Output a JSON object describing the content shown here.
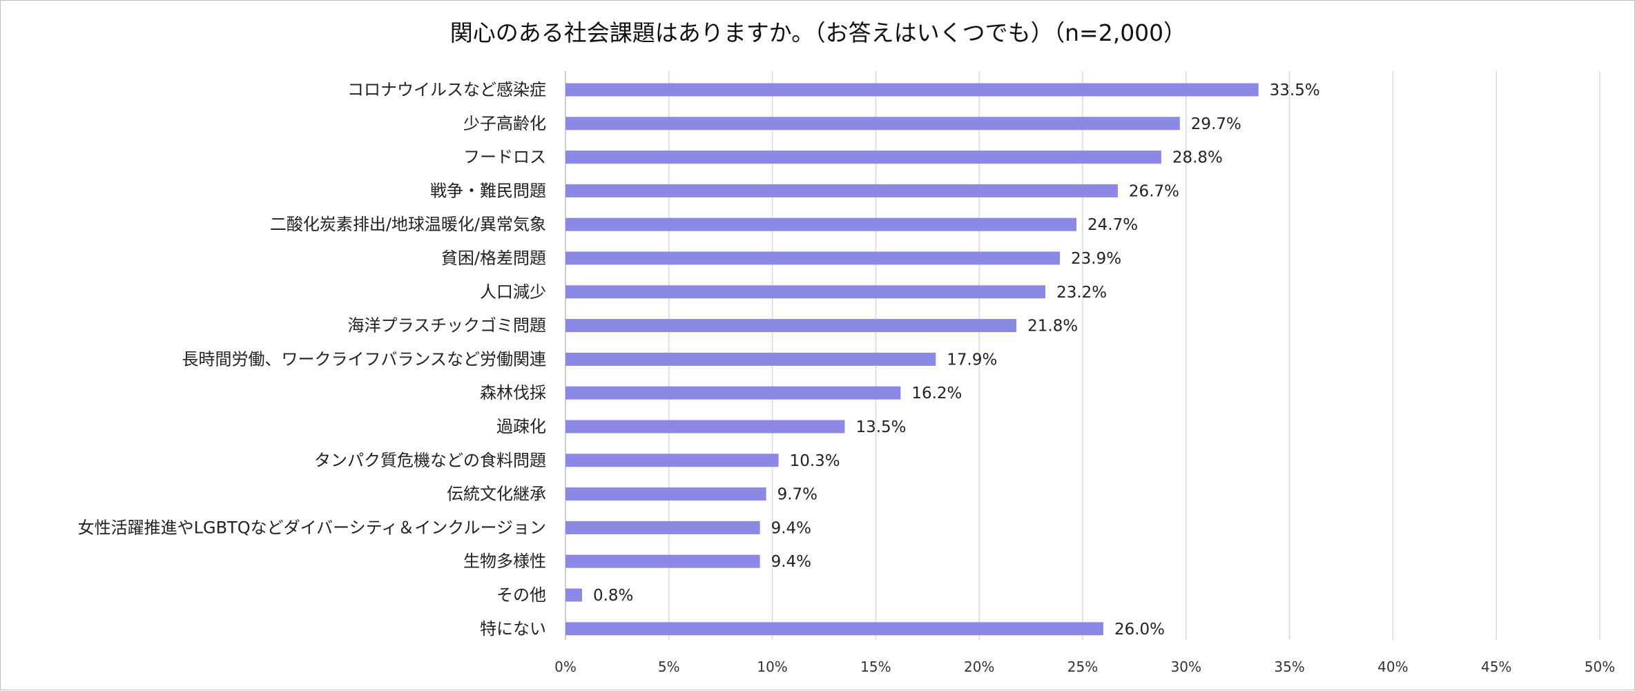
{
  "chart_data": {
    "type": "bar",
    "orientation": "horizontal",
    "title": "関心のある社会課題はありますか。（お答えはいくつでも）（n=2,000）",
    "categories": [
      "コロナウイルスなど感染症",
      "少子高齢化",
      "フードロス",
      "戦争・難民問題",
      "二酸化炭素排出/地球温暖化/異常気象",
      "貧困/格差問題",
      "人口減少",
      "海洋プラスチックゴミ問題",
      "長時間労働、ワークライフバランスなど労働関連",
      "森林伐採",
      "過疎化",
      "タンパク質危機などの食料問題",
      "伝統文化継承",
      "女性活躍推進やLGBTQなどダイバーシティ＆インクルージョン",
      "生物多様性",
      "その他",
      "特にない"
    ],
    "values": [
      33.5,
      29.7,
      28.8,
      26.7,
      24.7,
      23.9,
      23.2,
      21.8,
      17.9,
      16.2,
      13.5,
      10.3,
      9.7,
      9.4,
      9.4,
      0.8,
      26.0
    ],
    "value_labels": [
      "33.5%",
      "29.7%",
      "28.8%",
      "26.7%",
      "24.7%",
      "23.9%",
      "23.2%",
      "21.8%",
      "17.9%",
      "16.2%",
      "13.5%",
      "10.3%",
      "9.7%",
      "9.4%",
      "9.4%",
      "0.8%",
      "26.0%"
    ],
    "xlim": [
      0,
      50
    ],
    "xticks": [
      0,
      5,
      10,
      15,
      20,
      25,
      30,
      35,
      40,
      45,
      50
    ],
    "xtick_labels": [
      "0%",
      "5%",
      "10%",
      "15%",
      "20%",
      "25%",
      "30%",
      "35%",
      "40%",
      "45%",
      "50%"
    ],
    "xlabel": "",
    "ylabel": "",
    "grid": true,
    "legend": "none",
    "bar_color": "#8c88e6"
  }
}
